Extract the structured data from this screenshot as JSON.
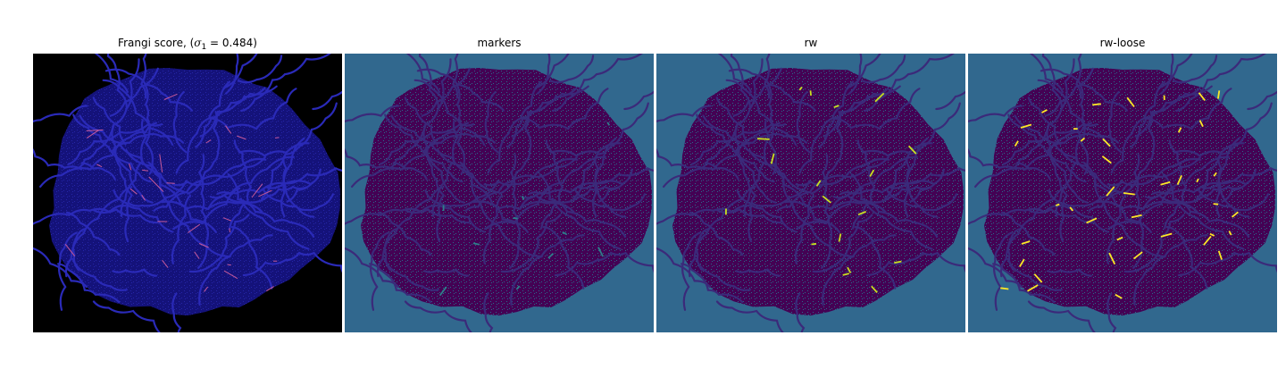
{
  "panels": [
    {
      "title_prefix": "Frangi score, (",
      "title_symbol": "σ",
      "title_subscript": "1",
      "title_suffix": " = 0.484)",
      "background": "#000000",
      "blob": "#14127a",
      "vessel": "#2a2ab8",
      "highlight": "#c85a9a"
    },
    {
      "title": "markers",
      "background": "#31688e",
      "blob": "#440154",
      "vessel": "#3b2a7a",
      "highlight": "#2e7f8a"
    },
    {
      "title": "rw",
      "background": "#31688e",
      "blob": "#440154",
      "vessel": "#3b2a7a",
      "highlight": "#c8e020"
    },
    {
      "title": "rw-loose",
      "background": "#31688e",
      "blob": "#440154",
      "vessel": "#3b2a7a",
      "highlight": "#fde725"
    }
  ]
}
